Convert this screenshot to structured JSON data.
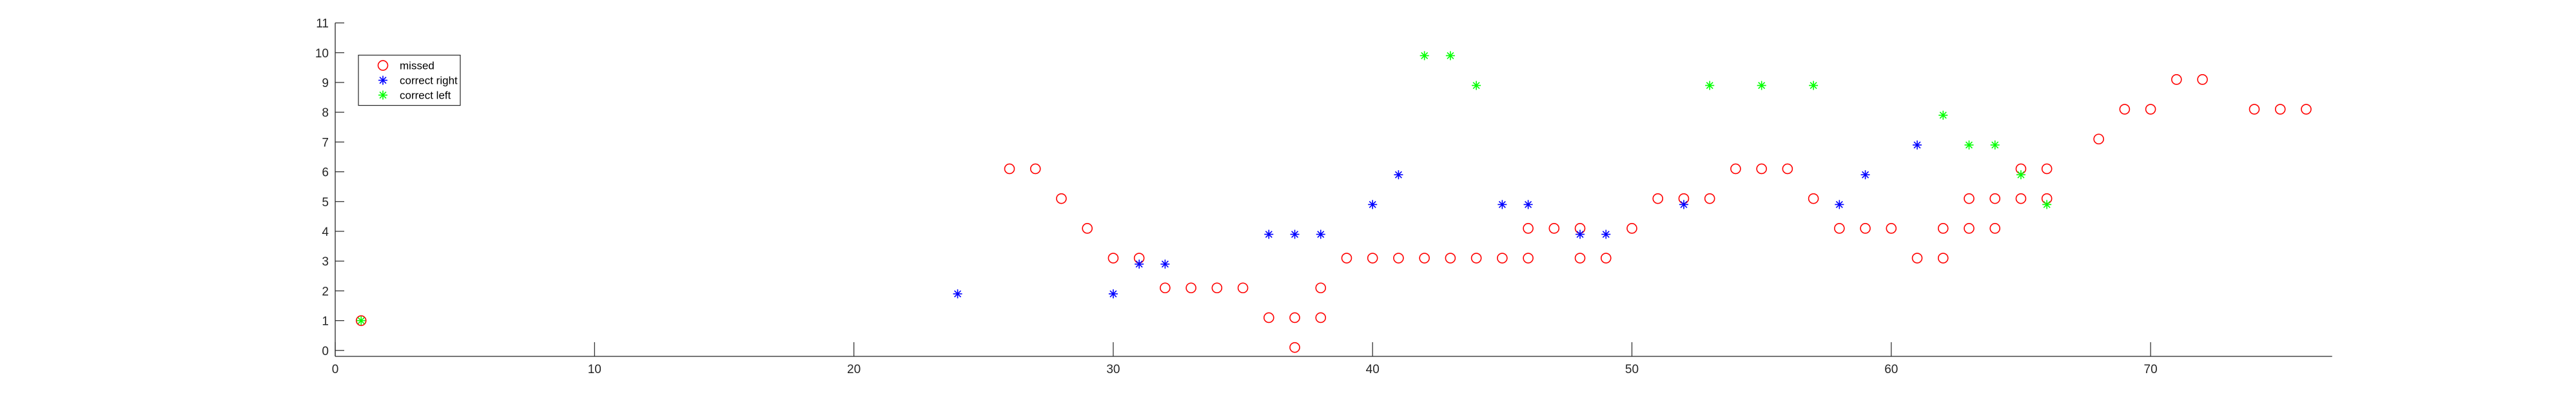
{
  "chart_data": {
    "type": "scatter",
    "title": "",
    "xlabel": "",
    "ylabel": "",
    "xlim": [
      0,
      77
    ],
    "ylim": [
      -0.2,
      11
    ],
    "x_ticks": [
      0,
      10,
      20,
      30,
      40,
      50,
      60,
      70
    ],
    "y_ticks": [
      0,
      1,
      2,
      3,
      4,
      5,
      6,
      7,
      8,
      9,
      10,
      11
    ],
    "grid": false,
    "legend_position": "top-left",
    "series": [
      {
        "name": "missed",
        "marker": "circle",
        "color": "#ff0000",
        "points": [
          [
            1,
            1
          ],
          [
            26,
            6.1
          ],
          [
            27,
            6.1
          ],
          [
            28,
            5.1
          ],
          [
            29,
            4.1
          ],
          [
            30,
            3.1
          ],
          [
            31,
            3.1
          ],
          [
            32,
            2.1
          ],
          [
            33,
            2.1
          ],
          [
            34,
            2.1
          ],
          [
            35,
            2.1
          ],
          [
            36,
            1.1
          ],
          [
            37,
            1.1
          ],
          [
            37,
            0.1
          ],
          [
            38,
            1.1
          ],
          [
            38,
            2.1
          ],
          [
            39,
            3.1
          ],
          [
            40,
            3.1
          ],
          [
            41,
            3.1
          ],
          [
            42,
            3.1
          ],
          [
            43,
            3.1
          ],
          [
            44,
            3.1
          ],
          [
            45,
            3.1
          ],
          [
            46,
            3.1
          ],
          [
            46,
            4.1
          ],
          [
            47,
            4.1
          ],
          [
            48,
            4.1
          ],
          [
            48,
            3.1
          ],
          [
            49,
            3.1
          ],
          [
            50,
            4.1
          ],
          [
            51,
            5.1
          ],
          [
            52,
            5.1
          ],
          [
            53,
            5.1
          ],
          [
            54,
            6.1
          ],
          [
            55,
            6.1
          ],
          [
            56,
            6.1
          ],
          [
            57,
            5.1
          ],
          [
            58,
            4.1
          ],
          [
            59,
            4.1
          ],
          [
            60,
            4.1
          ],
          [
            61,
            3.1
          ],
          [
            62,
            3.1
          ],
          [
            62,
            4.1
          ],
          [
            63,
            4.1
          ],
          [
            63,
            5.1
          ],
          [
            64,
            4.1
          ],
          [
            64,
            5.1
          ],
          [
            65,
            5.1
          ],
          [
            65,
            6.1
          ],
          [
            66,
            5.1
          ],
          [
            66,
            6.1
          ],
          [
            68,
            7.1
          ],
          [
            69,
            8.1
          ],
          [
            70,
            8.1
          ],
          [
            71,
            9.1
          ],
          [
            72,
            9.1
          ],
          [
            74,
            8.1
          ],
          [
            75,
            8.1
          ],
          [
            76,
            8.1
          ]
        ]
      },
      {
        "name": "correct right",
        "marker": "asterisk",
        "color": "#0000ff",
        "points": [
          [
            24,
            1.9
          ],
          [
            30,
            1.9
          ],
          [
            31,
            2.9
          ],
          [
            32,
            2.9
          ],
          [
            36,
            3.9
          ],
          [
            37,
            3.9
          ],
          [
            38,
            3.9
          ],
          [
            40,
            4.9
          ],
          [
            41,
            5.9
          ],
          [
            45,
            4.9
          ],
          [
            46,
            4.9
          ],
          [
            48,
            3.9
          ],
          [
            49,
            3.9
          ],
          [
            52,
            4.9
          ],
          [
            58,
            4.9
          ],
          [
            59,
            5.9
          ],
          [
            61,
            6.9
          ]
        ]
      },
      {
        "name": "correct left",
        "marker": "asterisk",
        "color": "#00ff00",
        "points": [
          [
            1,
            1
          ],
          [
            42,
            9.9
          ],
          [
            43,
            9.9
          ],
          [
            44,
            8.9
          ],
          [
            53,
            8.9
          ],
          [
            55,
            8.9
          ],
          [
            57,
            8.9
          ],
          [
            62,
            7.9
          ],
          [
            63,
            6.9
          ],
          [
            64,
            6.9
          ],
          [
            65,
            5.9
          ],
          [
            66,
            4.9
          ]
        ]
      }
    ]
  }
}
